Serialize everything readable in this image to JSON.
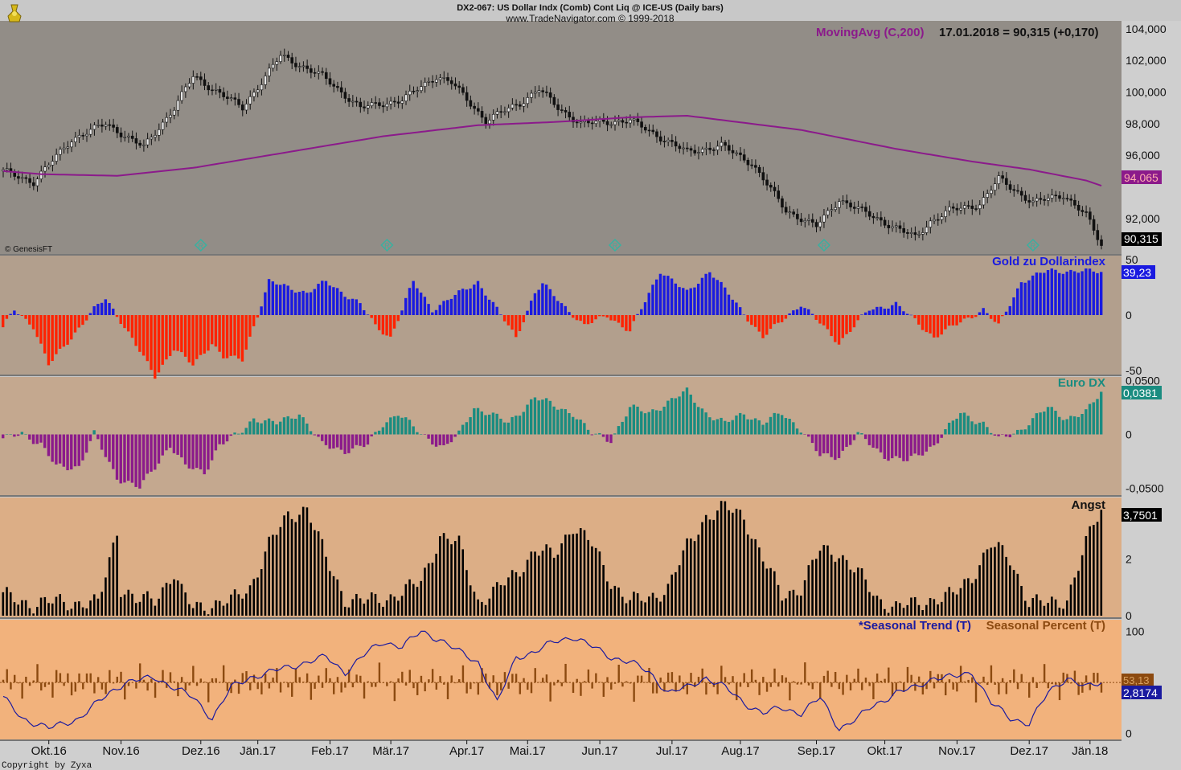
{
  "header": {
    "title": "DX2-067:  US Dollar Indx (Comb) Cont Liq @ ICE-US  (Daily bars)",
    "subtitle": "www.TradeNavigator.com © 1999-2018"
  },
  "footer": {
    "copyright": "Copyright by Zyxa"
  },
  "colors": {
    "price_bg": "#928d87",
    "gold_bg": "#b29f8d",
    "euro_bg": "#c4a88f",
    "angst_bg": "#dcae86",
    "seasonal_bg": "#f2b27c",
    "moving_avg": "#8b1a8b",
    "gold_pos": "#1a1ae0",
    "gold_neg": "#ff2200",
    "euro_pos": "#1a8c80",
    "euro_neg": "#8b1a8b",
    "angst": "#000000",
    "seasonal_trend": "#1a1aa0",
    "seasonal_percent": "#8c4a10"
  },
  "chart_data": [
    {
      "type": "candlestick",
      "id": "price",
      "watermark": "© GenesisFT",
      "legend_label": "MovingAvg (C,200)",
      "legend_value": "17.01.2018 = 90,315 (+0,170)",
      "ylim": [
        89.8,
        104.4
      ],
      "yticks": [
        104,
        102,
        100,
        98,
        96,
        92
      ],
      "ytick_labels": [
        "104,000",
        "102,000",
        "100,000",
        "98,000",
        "96,000",
        "92,000"
      ],
      "last_price_label": "90,315",
      "ma_label": "94,065",
      "price_keys_x": [
        0,
        8,
        18,
        27,
        37,
        45,
        50,
        63,
        73,
        84,
        94,
        105,
        114,
        118,
        127,
        136,
        141,
        146,
        152,
        165,
        180,
        189,
        197,
        206,
        214,
        220,
        229,
        240,
        244,
        249,
        257,
        262,
        271,
        279,
        285,
        289
      ],
      "price_keys_y": [
        95.0,
        94.3,
        97.0,
        98.0,
        96.5,
        99.0,
        101.0,
        99.0,
        102.3,
        101.0,
        99.0,
        99.5,
        101.0,
        100.6,
        98.2,
        99.3,
        100.2,
        99.0,
        98.0,
        98.2,
        96.2,
        96.6,
        95.5,
        92.5,
        91.5,
        93.2,
        92.1,
        90.8,
        91.8,
        92.5,
        92.9,
        94.5,
        93.0,
        93.5,
        92.2,
        90.3
      ],
      "ma_keys_x": [
        0,
        10,
        30,
        50,
        80,
        100,
        125,
        145,
        165,
        180,
        210,
        235,
        255,
        270,
        285,
        289
      ],
      "ma_keys_y": [
        95.0,
        94.8,
        94.7,
        95.2,
        96.4,
        97.2,
        97.9,
        98.1,
        98.4,
        98.5,
        97.6,
        96.4,
        95.6,
        95.1,
        94.4,
        94.07
      ],
      "seasonal_markers_x": [
        52,
        101,
        161,
        216,
        271
      ]
    },
    {
      "type": "bar",
      "id": "gold",
      "label": "Gold zu Dollarindex",
      "value_label": "39,23",
      "ylim": [
        -52,
        52
      ],
      "yticks": [
        50,
        0,
        -50
      ],
      "ytick_labels": [
        "50",
        "0",
        "-50"
      ],
      "keys_x": [
        0,
        3,
        8,
        12,
        24,
        27,
        31,
        40,
        45,
        50,
        55,
        58,
        63,
        70,
        80,
        85,
        94,
        98,
        102,
        108,
        113,
        125,
        135,
        140,
        142,
        153,
        159,
        165,
        173,
        180,
        186,
        200,
        210,
        220,
        228,
        235,
        245,
        258,
        262,
        268,
        275,
        289
      ],
      "keys_y": [
        -12,
        5,
        -10,
        -45,
        5,
        15,
        -5,
        -55,
        -30,
        -45,
        -25,
        -38,
        -40,
        30,
        20,
        30,
        10,
        -10,
        -20,
        30,
        5,
        30,
        -20,
        20,
        28,
        -10,
        0,
        -15,
        40,
        20,
        40,
        -20,
        10,
        -25,
        5,
        10,
        -20,
        5,
        -10,
        30,
        40,
        39
      ]
    },
    {
      "type": "bar",
      "id": "euro",
      "label": "Euro DX",
      "value_label": "0,0381",
      "ylim": [
        -0.055,
        0.052
      ],
      "yticks": [
        0.05,
        0,
        -0.05
      ],
      "ytick_labels": [
        "0,0500",
        "0",
        "-0,0500"
      ],
      "keys_x": [
        0,
        5,
        10,
        14,
        20,
        24,
        30,
        36,
        40,
        44,
        48,
        53,
        57,
        62,
        66,
        72,
        78,
        84,
        90,
        96,
        100,
        104,
        110,
        116,
        120,
        124,
        128,
        133,
        140,
        146,
        150,
        155,
        160,
        165,
        170,
        175,
        180,
        185,
        190,
        195,
        200,
        205,
        210,
        215,
        220,
        225,
        232,
        238,
        245,
        252,
        258,
        262,
        268,
        275,
        280,
        285,
        289
      ],
      "keys_y": [
        -0.005,
        0.002,
        -0.01,
        -0.03,
        -0.03,
        0.0,
        -0.04,
        -0.05,
        -0.03,
        -0.01,
        -0.03,
        -0.035,
        -0.01,
        0.0,
        0.015,
        0.01,
        0.02,
        -0.01,
        -0.015,
        -0.01,
        0.01,
        0.02,
        0.0,
        -0.012,
        0.0,
        0.025,
        0.02,
        0.01,
        0.035,
        0.025,
        0.02,
        0.0,
        -0.005,
        0.025,
        0.02,
        0.03,
        0.04,
        0.02,
        0.01,
        0.02,
        0.01,
        0.02,
        0.005,
        -0.02,
        -0.02,
        0.0,
        -0.02,
        -0.025,
        -0.01,
        0.02,
        0.01,
        -0.005,
        0.005,
        0.025,
        0.015,
        0.02,
        0.04
      ]
    },
    {
      "type": "bar",
      "id": "angst",
      "label": "Angst",
      "value_label": "3,7501",
      "ylim": [
        0,
        4.1
      ],
      "yticks": [
        2,
        0
      ],
      "ytick_labels": [
        "2",
        "0"
      ],
      "keys_x": [
        0,
        8,
        15,
        25,
        30,
        31,
        35,
        40,
        45,
        47,
        50,
        55,
        60,
        65,
        70,
        75,
        80,
        85,
        90,
        95,
        100,
        105,
        110,
        115,
        120,
        125,
        130,
        135,
        140,
        145,
        150,
        155,
        160,
        165,
        170,
        175,
        180,
        185,
        190,
        195,
        200,
        205,
        210,
        215,
        220,
        225,
        230,
        235,
        240,
        245,
        250,
        255,
        260,
        265,
        270,
        275,
        280,
        285,
        287,
        289
      ],
      "keys_y": [
        0.7,
        0.4,
        0.5,
        0.4,
        3.0,
        1.0,
        0.5,
        0.6,
        1.5,
        0.8,
        0.3,
        0.4,
        0.5,
        1.0,
        2.5,
        3.5,
        3.8,
        2.0,
        0.6,
        0.5,
        0.6,
        0.8,
        1.2,
        2.8,
        2.5,
        0.5,
        0.9,
        1.5,
        2.3,
        2.1,
        3.2,
        2.5,
        1.2,
        0.5,
        0.6,
        1.0,
        2.4,
        3.5,
        3.8,
        3.5,
        2.0,
        0.7,
        1.0,
        2.3,
        2.2,
        1.5,
        0.6,
        0.3,
        0.4,
        0.6,
        0.7,
        1.4,
        2.5,
        2.0,
        0.5,
        0.4,
        0.6,
        2.5,
        3.2,
        3.75
      ]
    },
    {
      "type": "line",
      "id": "seasonal",
      "trend_label": "*Seasonal Trend (T)",
      "percent_label": "Seasonal Percent (T)",
      "trend_value_label": "2,8174",
      "percent_value_label": "53,13",
      "ylim": [
        -5,
        110
      ],
      "yticks": [
        100,
        0
      ],
      "ytick_labels": [
        "100",
        "0"
      ],
      "trend_keys_x": [
        0,
        5,
        12,
        20,
        28,
        32,
        40,
        45,
        50,
        55,
        60,
        65,
        70,
        75,
        80,
        85,
        90,
        96,
        100,
        105,
        110,
        115,
        120,
        125,
        130,
        135,
        140,
        145,
        150,
        155,
        160,
        165,
        170,
        175,
        180,
        185,
        190,
        195,
        200,
        205,
        210,
        215,
        220,
        225,
        228,
        235,
        240,
        245,
        250,
        255,
        260,
        265,
        270,
        275,
        280,
        285,
        289
      ],
      "trend_keys_y": [
        35,
        15,
        5,
        15,
        40,
        50,
        55,
        45,
        35,
        15,
        45,
        55,
        60,
        65,
        70,
        75,
        60,
        80,
        90,
        85,
        100,
        92,
        80,
        70,
        30,
        75,
        80,
        90,
        95,
        85,
        75,
        70,
        60,
        40,
        45,
        55,
        45,
        30,
        20,
        25,
        20,
        35,
        5,
        15,
        25,
        40,
        45,
        55,
        55,
        60,
        30,
        15,
        10,
        40,
        55,
        45,
        50
      ],
      "percent_amp": 20
    }
  ],
  "x_axis": {
    "labels": [
      "Okt.16",
      "Nov.16",
      "Dez.16",
      "Jän.17",
      "Feb.17",
      "Mär.17",
      "Apr.17",
      "Mai.17",
      "Jun.17",
      "Jul.17",
      "Aug.17",
      "Sep.17",
      "Okt.17",
      "Nov.17",
      "Dez.17",
      "Jän.18"
    ],
    "label_x": [
      12,
      31,
      52,
      67,
      86,
      102,
      122,
      138,
      157,
      176,
      194,
      214,
      232,
      251,
      270,
      286
    ],
    "n_bars": 290
  }
}
